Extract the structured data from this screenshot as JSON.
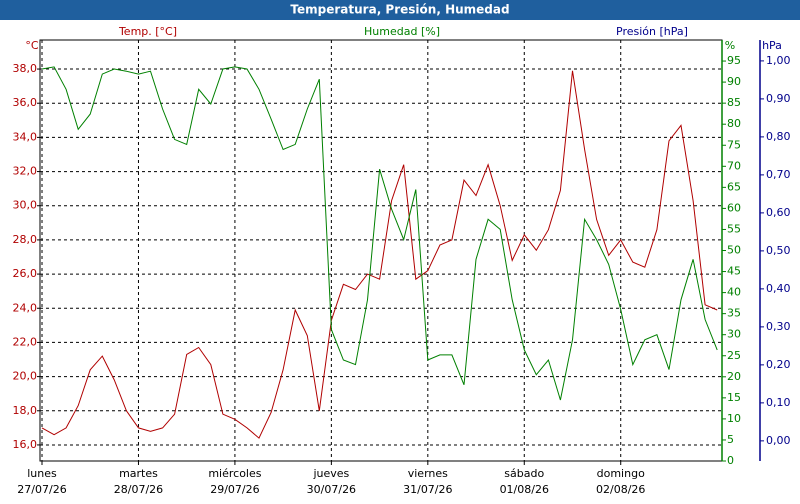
{
  "chart_data": {
    "type": "line",
    "title": "Temperatura, Presión, Humedad",
    "ylabel": "Temp. [°C]",
    "yunit": "°C",
    "y2label": "Humedad [%]",
    "y2unit": "%",
    "y3label": "Presión [hPa]",
    "y3unit": "hPa",
    "x": [
      0,
      3,
      6,
      9,
      12,
      15,
      18,
      21,
      24,
      27,
      30,
      33,
      36,
      39,
      42,
      45,
      48,
      51,
      54,
      57,
      60,
      63,
      66,
      69,
      72,
      75,
      78,
      81,
      84,
      87,
      90,
      93,
      96,
      99,
      102,
      105,
      108,
      111,
      114,
      117,
      120,
      123,
      126,
      129,
      132,
      135,
      138,
      141,
      144,
      147,
      150,
      153,
      156,
      159,
      162,
      165,
      168
    ],
    "xlim": [
      -0.5,
      169.2
    ],
    "xticks": [
      {
        "value": 0,
        "label": [
          "lunes",
          "27/07/26"
        ]
      },
      {
        "value": 24,
        "label": [
          "martes",
          "28/07/26"
        ]
      },
      {
        "value": 48,
        "label": [
          "miércoles",
          "29/07/26"
        ]
      },
      {
        "value": 72,
        "label": [
          "jueves",
          "30/07/26"
        ]
      },
      {
        "value": 96,
        "label": [
          "viernes",
          "31/07/26"
        ]
      },
      {
        "value": 120,
        "label": [
          "sábado",
          "01/08/26"
        ]
      },
      {
        "value": 144,
        "label": [
          "domingo",
          "02/08/26"
        ]
      }
    ],
    "ylim": [
      15.06,
      39.7
    ],
    "yticks": [
      {
        "value": 16,
        "label": "16,0"
      },
      {
        "value": 18,
        "label": "18,0"
      },
      {
        "value": 20,
        "label": "20,0"
      },
      {
        "value": 22,
        "label": "22,0"
      },
      {
        "value": 24,
        "label": "24,0"
      },
      {
        "value": 26,
        "label": "26,0"
      },
      {
        "value": 28,
        "label": "28,0"
      },
      {
        "value": 30,
        "label": "30,0"
      },
      {
        "value": 32,
        "label": "32,0"
      },
      {
        "value": 34,
        "label": "34,0"
      },
      {
        "value": 36,
        "label": "36,0"
      },
      {
        "value": 38,
        "label": "38,0"
      }
    ],
    "y2lim": [
      0,
      100
    ],
    "y2ticks": [
      0,
      5,
      10,
      15,
      20,
      25,
      30,
      35,
      40,
      45,
      50,
      55,
      60,
      65,
      70,
      75,
      80,
      85,
      90,
      95
    ],
    "y3lim": [
      -0.053,
      1.055
    ],
    "y3ticks": [
      {
        "value": 0,
        "label": "0,00"
      },
      {
        "value": 0.1,
        "label": "0,10"
      },
      {
        "value": 0.2,
        "label": "0,20"
      },
      {
        "value": 0.3,
        "label": "0,30"
      },
      {
        "value": 0.4,
        "label": "0,40"
      },
      {
        "value": 0.5,
        "label": "0,50"
      },
      {
        "value": 0.6,
        "label": "0,60"
      },
      {
        "value": 0.7,
        "label": "0,70"
      },
      {
        "value": 0.8,
        "label": "0,80"
      },
      {
        "value": 0.9,
        "label": "0,90"
      },
      {
        "value": 1,
        "label": "1,00"
      }
    ],
    "grid": true,
    "series": [
      {
        "name": "Temp. [°C]",
        "color": "#b00000",
        "axis": "y",
        "values": [
          17.0,
          16.6,
          17.0,
          18.3,
          20.4,
          21.2,
          19.8,
          18.0,
          17.0,
          16.8,
          17.0,
          17.8,
          21.3,
          21.7,
          20.7,
          17.8,
          17.5,
          17.0,
          16.4,
          17.9,
          20.4,
          23.9,
          22.4,
          18.0,
          23.3,
          25.4,
          25.1,
          26.0,
          25.7,
          30.3,
          32.4,
          25.7,
          26.2,
          27.7,
          28.0,
          31.5,
          30.6,
          32.4,
          30.0,
          26.8,
          28.3,
          27.4,
          28.6,
          30.9,
          37.9,
          33.3,
          29.2,
          27.1,
          28.0,
          26.7,
          26.4,
          28.6,
          33.8,
          34.7,
          30.3,
          24.2,
          23.9
        ]
      },
      {
        "name": "Humedad [%]",
        "color": "#008000",
        "axis": "y2",
        "values": [
          93.1,
          93.6,
          88.3,
          78.8,
          82.4,
          91.9,
          93.1,
          92.6,
          91.9,
          92.6,
          83.6,
          76.4,
          75.2,
          88.3,
          84.8,
          93.1,
          93.6,
          93.1,
          88.3,
          81.2,
          74.0,
          75.2,
          83.6,
          90.7,
          31.2,
          24.0,
          22.9,
          38.3,
          69.3,
          59.8,
          52.6,
          64.5,
          24.0,
          25.2,
          25.2,
          18.1,
          47.9,
          57.4,
          55.0,
          38.3,
          26.4,
          20.5,
          24.0,
          14.5,
          28.8,
          57.4,
          52.6,
          46.7,
          36.0,
          22.9,
          28.8,
          30.0,
          21.7,
          38.3,
          47.9,
          33.6,
          26.4
        ]
      }
    ]
  }
}
